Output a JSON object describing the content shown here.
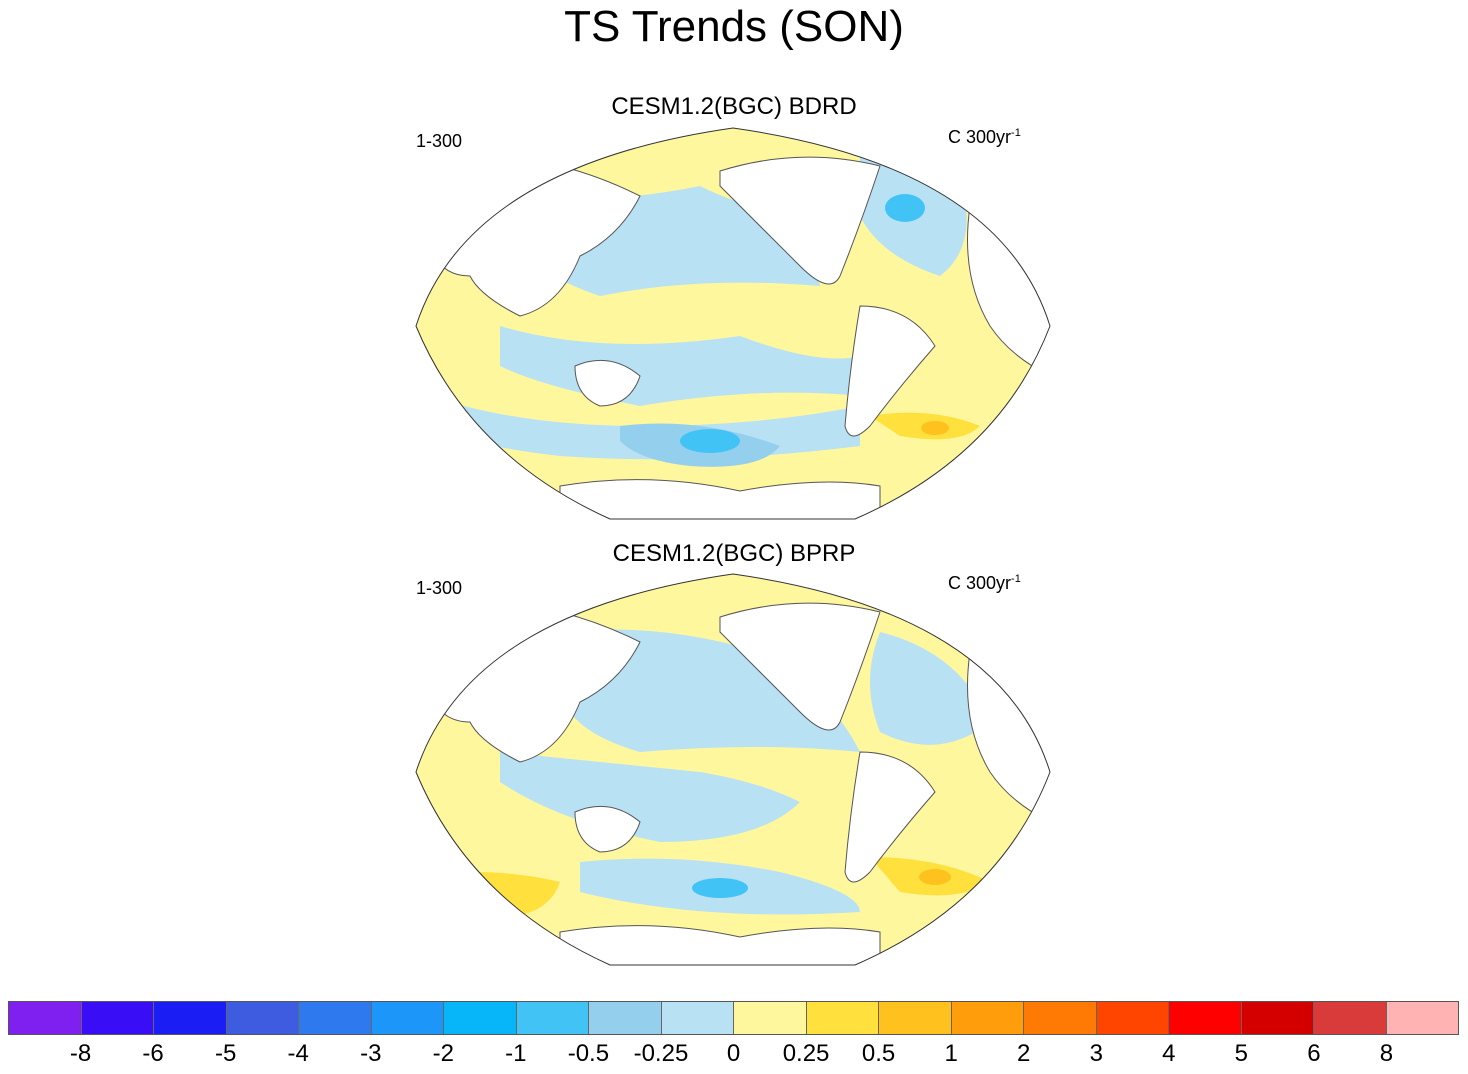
{
  "title": "TS Trends (SON)",
  "panels": [
    {
      "title": "CESM1.2(BGC) BDRD",
      "left_label": "1-300",
      "right_label_base": "C 300yr",
      "right_label_sup": "-1"
    },
    {
      "title": "CESM1.2(BGC) BPRP",
      "left_label": "1-300",
      "right_label_base": "C 300yr",
      "right_label_sup": "-1"
    }
  ],
  "colorbar": {
    "colors": [
      "#7f1ff0",
      "#3a0df7",
      "#1a1ef5",
      "#3e5ce0",
      "#2f79ee",
      "#1d96fa",
      "#07b5f9",
      "#41c4f5",
      "#94d0ee",
      "#b9e1f4",
      "#fff79d",
      "#ffe03c",
      "#ffc11e",
      "#ff9e0a",
      "#ff7a05",
      "#ff4500",
      "#ff0000",
      "#d40000",
      "#d93a3a",
      "#ffb3b3"
    ],
    "labels": [
      "-8",
      "-6",
      "-5",
      "-4",
      "-3",
      "-2",
      "-1",
      "-0.5",
      "-0.25",
      "0",
      "0.25",
      "0.5",
      "1",
      "2",
      "3",
      "4",
      "5",
      "6",
      "8"
    ]
  },
  "map_colors": {
    "land": "#ffffff",
    "ocean_warm": "#fff79d",
    "ocean_cool": "#b9e1f4",
    "cool_mid": "#94d0ee",
    "cool_strong": "#41c4f5",
    "warm_mid": "#ffe03c",
    "warm_strong": "#ffc11e",
    "coast": "#555555"
  }
}
